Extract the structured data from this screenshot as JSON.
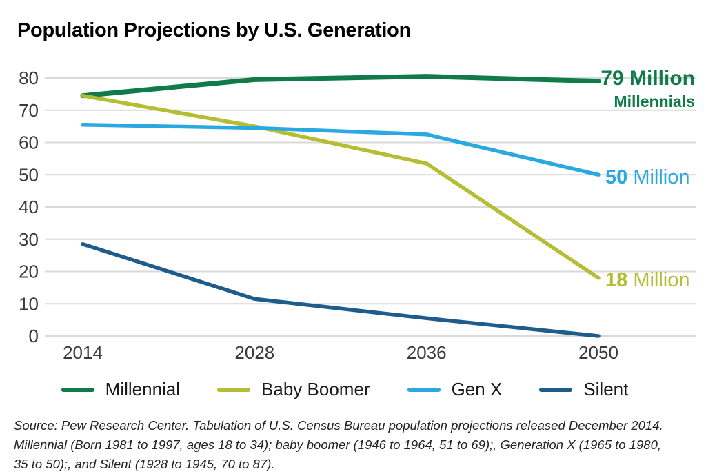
{
  "title": "Population Projections by U.S. Generation",
  "colors": {
    "title": "#0f7b48",
    "gridline": "#d9d9d9",
    "axis_text": "#3a3a3a",
    "source_text": "#222222"
  },
  "chart_data": {
    "type": "line",
    "categories": [
      "2014",
      "2028",
      "2036",
      "2050"
    ],
    "series": [
      {
        "name": "Millennial",
        "color": "#0f7b48",
        "values": [
          74.5,
          79.5,
          80.5,
          79
        ]
      },
      {
        "name": "Baby Boomer",
        "color": "#b5bd35",
        "values": [
          74.5,
          65,
          53.5,
          18
        ]
      },
      {
        "name": "Gen X",
        "color": "#2aa9e0",
        "values": [
          65.5,
          64.5,
          62.5,
          50
        ]
      },
      {
        "name": "Silent",
        "color": "#1e5c8c",
        "values": [
          28.5,
          11.5,
          5.5,
          0
        ]
      }
    ],
    "title": "Population Projections by U.S. Generation",
    "xlabel": "",
    "ylabel": "",
    "ylim": [
      0,
      80
    ],
    "ytick_step": 10,
    "yticks": [
      0,
      10,
      20,
      30,
      40,
      50,
      60,
      70,
      80
    ],
    "grid": "horizontal",
    "legend_position": "bottom",
    "annotations": [
      {
        "series": "Millennial",
        "text": "79 Million",
        "subtext": "Millennials"
      },
      {
        "series": "Gen X",
        "text": "50 Million"
      },
      {
        "series": "Baby Boomer",
        "text": "18 Million"
      }
    ]
  },
  "annotations": {
    "millennial": {
      "value": "79 Million",
      "label": "Millennials"
    },
    "genx": {
      "number": "50",
      "unit": " Million"
    },
    "boomer": {
      "number": "18",
      "unit": " Million"
    }
  },
  "legend": {
    "items": [
      {
        "label": "Millennial"
      },
      {
        "label": "Baby Boomer"
      },
      {
        "label": "Gen X"
      },
      {
        "label": "Silent"
      }
    ]
  },
  "source": {
    "line1": "Source: Pew Research Center. Tabulation of U.S. Census Bureau population projections released December 2014.",
    "line2": "Millennial (Born 1981 to 1997, ages 18 to 34); baby boomer (1946 to 1964, 51 to 69);, Generation X (1965 to 1980,",
    "line3": "35 to 50);, and Silent (1928 to 1945, 70 to 87)."
  }
}
